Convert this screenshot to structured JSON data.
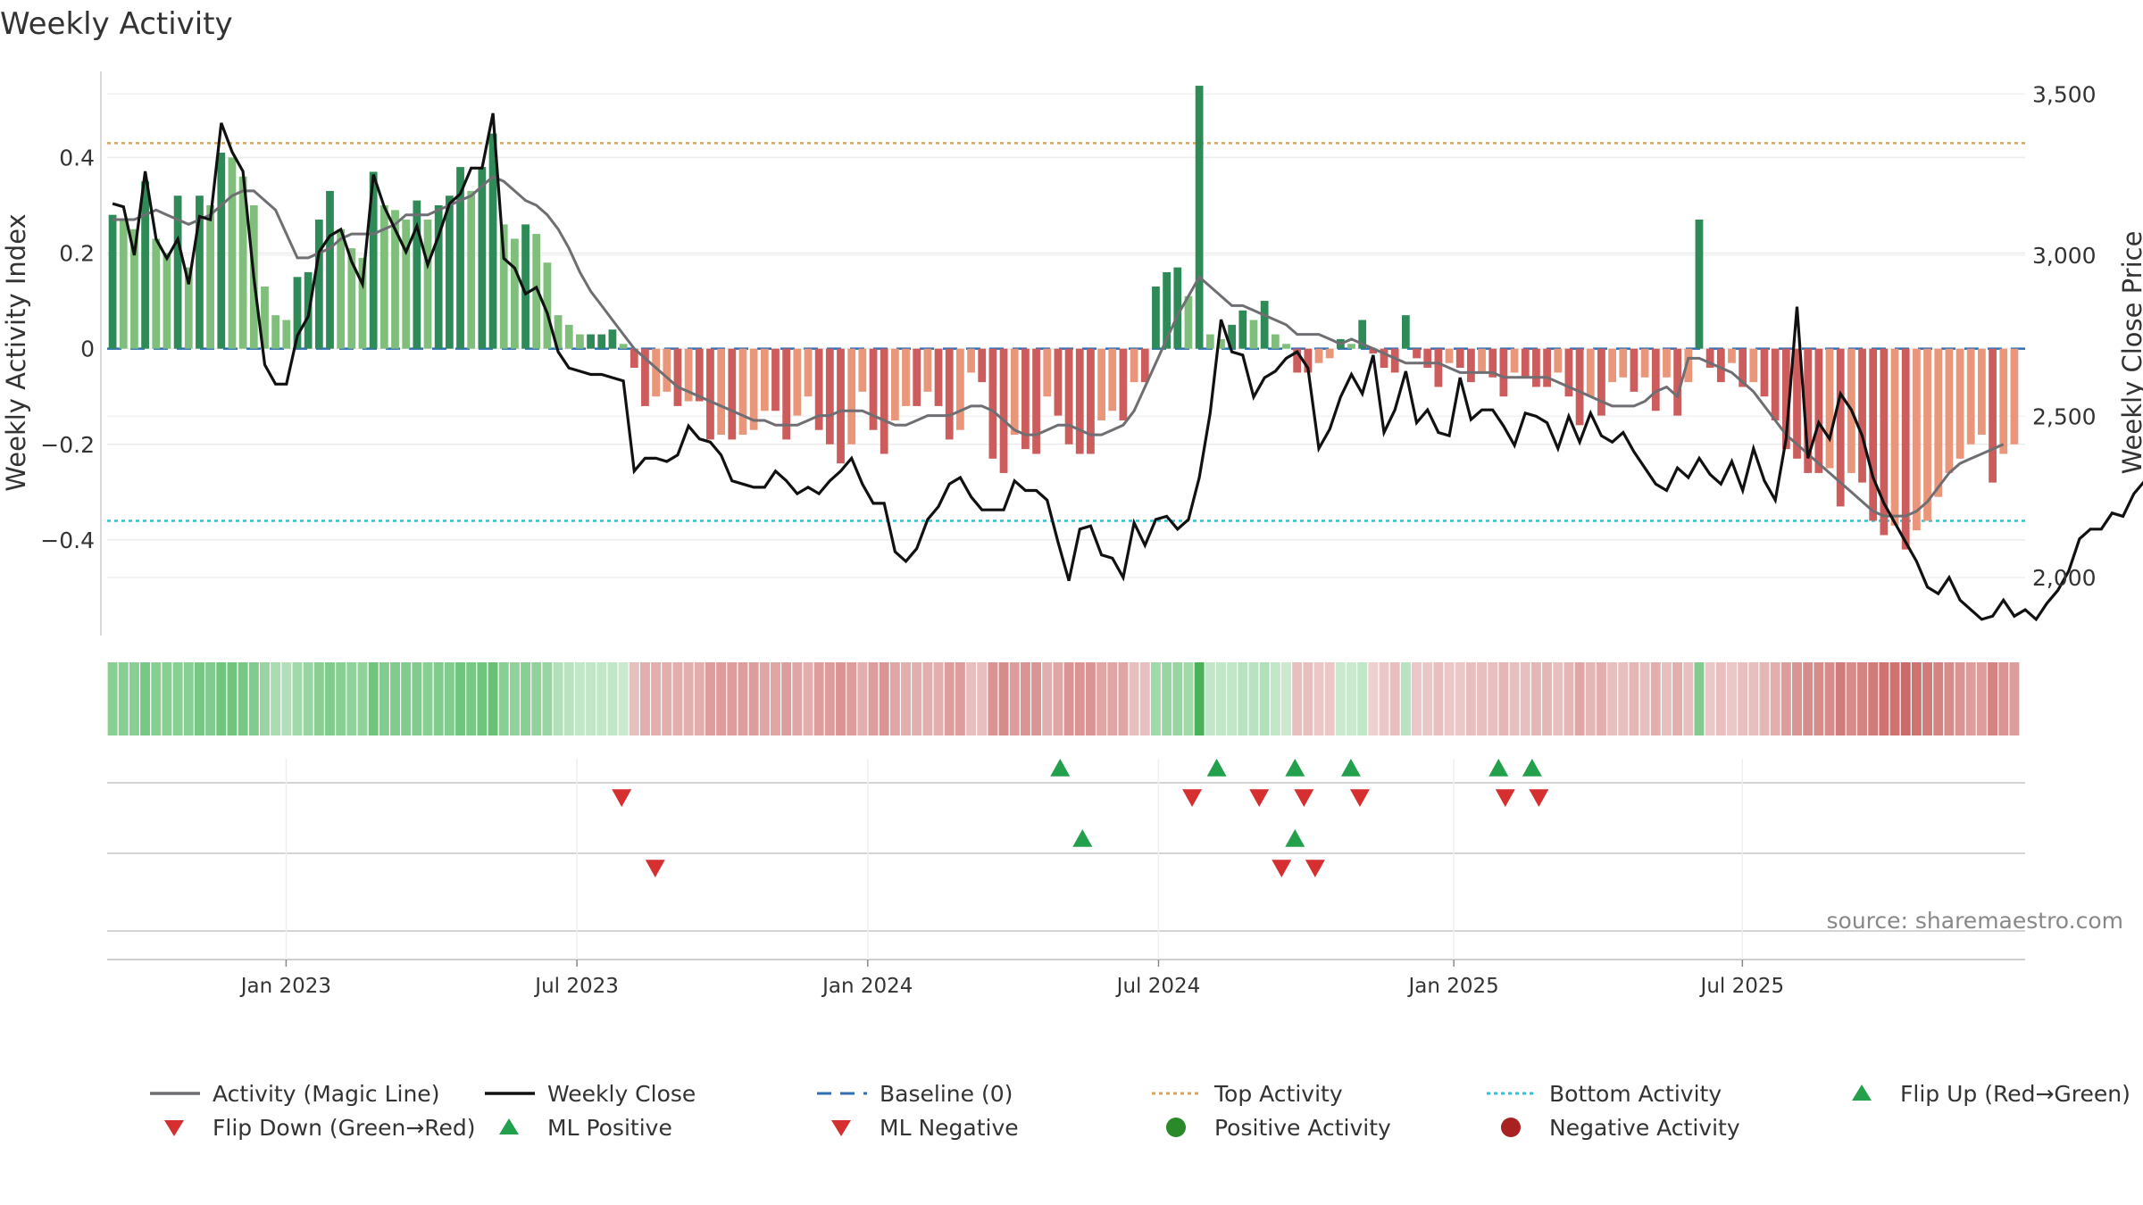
{
  "chart_data": {
    "type": "bar",
    "title": "Weekly Activity",
    "ylabel_left": "Weekly Activity Index",
    "ylabel_right": "Weekly Close Price",
    "xlabel": "",
    "ylim_left": [
      -0.6,
      0.58
    ],
    "ylim_right": [
      1820,
      3570
    ],
    "y_ticks_left": [
      {
        "value": 0.4,
        "label": "0.4"
      },
      {
        "value": 0.2,
        "label": "0.2"
      },
      {
        "value": 0,
        "label": "0"
      },
      {
        "value": -0.2,
        "label": "−0.2"
      },
      {
        "value": -0.4,
        "label": "−0.4"
      }
    ],
    "y_ticks_right": [
      {
        "value": 3500,
        "label": "3,500"
      },
      {
        "value": 3000,
        "label": "3,000"
      },
      {
        "value": 2500,
        "label": "2,500"
      },
      {
        "value": 2000,
        "label": "2,000"
      }
    ],
    "x_ticks": [
      {
        "week": 8,
        "label": "Jan 2023"
      },
      {
        "week": 21,
        "label": "Jul 2023"
      },
      {
        "week": 34,
        "label": "Jan 2024"
      },
      {
        "week": 47,
        "label": "Jul 2024"
      },
      {
        "week": 60.2,
        "label": "Jan 2025"
      },
      {
        "week": 73.1,
        "label": "Jul 2025"
      }
    ],
    "top_activity": 0.43,
    "bottom_activity": -0.36,
    "baseline": 0,
    "activity": [
      0.28,
      0.27,
      0.25,
      0.35,
      0.23,
      0.2,
      0.32,
      0.17,
      0.32,
      0.3,
      0.41,
      0.4,
      0.36,
      0.3,
      0.13,
      0.07,
      0.06,
      0.15,
      0.16,
      0.27,
      0.33,
      0.25,
      0.21,
      0.19,
      0.37,
      0.3,
      0.29,
      0.27,
      0.31,
      0.27,
      0.3,
      0.32,
      0.38,
      0.33,
      0.38,
      0.45,
      0.26,
      0.23,
      0.26,
      0.24,
      0.18,
      0.07,
      0.05,
      0.03,
      0.03,
      0.03,
      0.04,
      0.01,
      -0.04,
      -0.12,
      -0.1,
      -0.09,
      -0.12,
      -0.11,
      -0.11,
      -0.19,
      -0.18,
      -0.19,
      -0.18,
      -0.17,
      -0.13,
      -0.13,
      -0.19,
      -0.14,
      -0.1,
      -0.17,
      -0.2,
      -0.24,
      -0.2,
      -0.09,
      -0.17,
      -0.22,
      -0.15,
      -0.12,
      -0.12,
      -0.09,
      -0.12,
      -0.19,
      -0.17,
      -0.05,
      -0.07,
      -0.23,
      -0.26,
      -0.18,
      -0.21,
      -0.22,
      -0.1,
      -0.14,
      -0.2,
      -0.22,
      -0.22,
      -0.15,
      -0.13,
      -0.15,
      -0.07,
      -0.07,
      0.13,
      0.16,
      0.17,
      0.11,
      0.55,
      0.03,
      0.02,
      0.05,
      0.08,
      0.06,
      0.1,
      0.03,
      0.01,
      -0.05,
      -0.05,
      -0.03,
      -0.02,
      0.02,
      0.01,
      0.06,
      -0.01,
      -0.04,
      -0.05,
      0.07,
      -0.02,
      -0.04,
      -0.08,
      -0.03,
      -0.04,
      -0.07,
      -0.05,
      -0.06,
      -0.1,
      -0.05,
      -0.06,
      -0.08,
      -0.08,
      -0.05,
      -0.1,
      -0.16,
      -0.1,
      -0.14,
      -0.07,
      -0.06,
      -0.09,
      -0.06,
      -0.13,
      -0.06,
      -0.14,
      -0.07,
      0.27,
      -0.04,
      -0.07,
      -0.03,
      -0.08,
      -0.07,
      -0.1,
      -0.15,
      -0.21,
      -0.23,
      -0.26,
      -0.26,
      -0.25,
      -0.33,
      -0.26,
      -0.28,
      -0.36,
      -0.39,
      -0.37,
      -0.42,
      -0.38,
      -0.36,
      -0.31,
      -0.26,
      -0.23,
      -0.2,
      -0.18,
      -0.28,
      -0.22,
      -0.2
    ],
    "magic_line": [
      0.27,
      0.27,
      0.27,
      0.28,
      0.29,
      0.28,
      0.27,
      0.26,
      0.27,
      0.28,
      0.3,
      0.32,
      0.33,
      0.33,
      0.31,
      0.29,
      0.24,
      0.19,
      0.19,
      0.2,
      0.21,
      0.23,
      0.24,
      0.24,
      0.24,
      0.25,
      0.26,
      0.28,
      0.28,
      0.28,
      0.29,
      0.3,
      0.31,
      0.32,
      0.34,
      0.36,
      0.35,
      0.33,
      0.31,
      0.3,
      0.28,
      0.25,
      0.21,
      0.16,
      0.12,
      0.09,
      0.06,
      0.03,
      0.0,
      -0.02,
      -0.04,
      -0.06,
      -0.08,
      -0.09,
      -0.1,
      -0.11,
      -0.12,
      -0.13,
      -0.14,
      -0.15,
      -0.15,
      -0.16,
      -0.16,
      -0.16,
      -0.15,
      -0.14,
      -0.14,
      -0.13,
      -0.13,
      -0.13,
      -0.14,
      -0.15,
      -0.16,
      -0.16,
      -0.15,
      -0.14,
      -0.14,
      -0.14,
      -0.13,
      -0.12,
      -0.12,
      -0.13,
      -0.15,
      -0.17,
      -0.18,
      -0.18,
      -0.17,
      -0.16,
      -0.16,
      -0.17,
      -0.18,
      -0.18,
      -0.17,
      -0.16,
      -0.13,
      -0.08,
      -0.03,
      0.02,
      0.07,
      0.11,
      0.15,
      0.13,
      0.11,
      0.09,
      0.09,
      0.08,
      0.07,
      0.06,
      0.05,
      0.03,
      0.03,
      0.03,
      0.02,
      0.01,
      0.02,
      0.01,
      0.0,
      -0.01,
      -0.02,
      -0.03,
      -0.03,
      -0.03,
      -0.03,
      -0.04,
      -0.05,
      -0.05,
      -0.05,
      -0.05,
      -0.06,
      -0.06,
      -0.06,
      -0.06,
      -0.06,
      -0.07,
      -0.08,
      -0.09,
      -0.1,
      -0.11,
      -0.12,
      -0.12,
      -0.12,
      -0.11,
      -0.09,
      -0.08,
      -0.1,
      -0.02,
      -0.02,
      -0.03,
      -0.04,
      -0.05,
      -0.07,
      -0.09,
      -0.12,
      -0.15,
      -0.18,
      -0.2,
      -0.22,
      -0.24,
      -0.26,
      -0.28,
      -0.3,
      -0.32,
      -0.34,
      -0.35,
      -0.35,
      -0.35,
      -0.34,
      -0.32,
      -0.29,
      -0.26,
      -0.24,
      -0.23,
      -0.22,
      -0.21,
      -0.2
    ],
    "weekly_close": [
      3160,
      3150,
      3000,
      3260,
      3050,
      2990,
      3050,
      2910,
      3120,
      3110,
      3410,
      3320,
      3260,
      2930,
      2660,
      2600,
      2600,
      2750,
      2810,
      3010,
      3060,
      3080,
      2980,
      2910,
      3250,
      3150,
      3080,
      3010,
      3090,
      2970,
      3060,
      3160,
      3190,
      3270,
      3270,
      3440,
      2990,
      2960,
      2880,
      2900,
      2820,
      2700,
      2650,
      2640,
      2630,
      2630,
      2620,
      2610,
      2330,
      2370,
      2370,
      2360,
      2380,
      2470,
      2430,
      2420,
      2380,
      2300,
      2290,
      2280,
      2280,
      2330,
      2300,
      2260,
      2280,
      2260,
      2300,
      2330,
      2370,
      2290,
      2230,
      2230,
      2080,
      2050,
      2090,
      2180,
      2220,
      2290,
      2310,
      2250,
      2210,
      2210,
      2210,
      2300,
      2270,
      2270,
      2240,
      2110,
      1990,
      2150,
      2160,
      2070,
      2060,
      2000,
      2170,
      2100,
      2180,
      2190,
      2150,
      2180,
      2310,
      2510,
      2800,
      2700,
      2690,
      2560,
      2620,
      2640,
      2680,
      2700,
      2650,
      2400,
      2460,
      2560,
      2630,
      2570,
      2690,
      2450,
      2520,
      2640,
      2480,
      2520,
      2450,
      2440,
      2620,
      2490,
      2520,
      2520,
      2470,
      2410,
      2510,
      2500,
      2480,
      2400,
      2500,
      2420,
      2510,
      2440,
      2420,
      2450,
      2390,
      2340,
      2290,
      2270,
      2340,
      2310,
      2370,
      2320,
      2290,
      2360,
      2270,
      2400,
      2300,
      2240,
      2430,
      2840,
      2370,
      2480,
      2430,
      2570,
      2520,
      2440,
      2310,
      2230,
      2170,
      2110,
      2050,
      1970,
      1950,
      2000,
      1930,
      1900,
      1870,
      1880,
      1930,
      1880,
      1900,
      1870,
      1920,
      1960,
      2020,
      2120,
      2150,
      2150,
      2200,
      2190,
      2260,
      2300,
      2350
    ],
    "heatstrip_intensity": [
      0.55,
      0.55,
      0.55,
      0.65,
      0.55,
      0.55,
      0.55,
      0.55,
      0.65,
      0.6,
      0.7,
      0.7,
      0.65,
      0.6,
      0.45,
      0.35,
      0.3,
      0.4,
      0.45,
      0.55,
      0.6,
      0.55,
      0.5,
      0.5,
      0.7,
      0.6,
      0.6,
      0.6,
      0.6,
      0.55,
      0.6,
      0.6,
      0.7,
      0.65,
      0.7,
      0.75,
      0.55,
      0.5,
      0.55,
      0.5,
      0.45,
      0.3,
      0.25,
      0.2,
      0.2,
      0.2,
      0.2,
      0.15,
      0.2,
      0.3,
      0.3,
      0.3,
      0.3,
      0.3,
      0.3,
      0.4,
      0.4,
      0.4,
      0.4,
      0.4,
      0.35,
      0.35,
      0.4,
      0.35,
      0.3,
      0.4,
      0.4,
      0.45,
      0.4,
      0.3,
      0.4,
      0.45,
      0.35,
      0.3,
      0.3,
      0.3,
      0.3,
      0.4,
      0.4,
      0.2,
      0.2,
      0.45,
      0.5,
      0.4,
      0.45,
      0.45,
      0.3,
      0.35,
      0.45,
      0.45,
      0.45,
      0.35,
      0.35,
      0.35,
      0.2,
      0.2,
      0.4,
      0.45,
      0.45,
      0.4,
      0.95,
      0.2,
      0.2,
      0.2,
      0.25,
      0.25,
      0.3,
      0.2,
      0.15,
      0.2,
      0.2,
      0.15,
      0.15,
      0.15,
      0.15,
      0.2,
      0.1,
      0.15,
      0.2,
      0.25,
      0.15,
      0.15,
      0.2,
      0.15,
      0.15,
      0.2,
      0.2,
      0.2,
      0.25,
      0.2,
      0.2,
      0.25,
      0.25,
      0.2,
      0.25,
      0.35,
      0.25,
      0.3,
      0.2,
      0.2,
      0.25,
      0.2,
      0.3,
      0.2,
      0.3,
      0.2,
      0.6,
      0.15,
      0.2,
      0.15,
      0.2,
      0.2,
      0.25,
      0.3,
      0.4,
      0.45,
      0.5,
      0.5,
      0.5,
      0.6,
      0.5,
      0.55,
      0.6,
      0.65,
      0.65,
      0.7,
      0.65,
      0.6,
      0.55,
      0.5,
      0.45,
      0.4,
      0.4,
      0.55,
      0.45,
      0.4
    ],
    "flip_up_weeks": [
      42.6,
      49.6,
      53.1,
      55.6,
      62.2,
      63.7
    ],
    "flip_down_weeks": [
      23.0,
      48.5,
      51.5,
      53.5,
      56.0,
      62.5,
      64.0
    ],
    "ml_positive_weeks": [
      43.6,
      53.1
    ],
    "ml_negative_weeks": [
      24.5,
      52.5,
      54.0
    ],
    "legend": [
      {
        "label": "Activity (Magic Line)",
        "kind": "line",
        "color": "#6e6e73"
      },
      {
        "label": "Weekly Close",
        "kind": "line",
        "color": "#111111"
      },
      {
        "label": "Baseline (0)",
        "kind": "dashed",
        "color": "#2e6fb5"
      },
      {
        "label": "Top Activity",
        "kind": "dotted",
        "color": "#d9a55a"
      },
      {
        "label": "Bottom Activity",
        "kind": "dotted",
        "color": "#2ec4d6"
      },
      {
        "label": "Flip Up (Red→Green)",
        "kind": "triangle-up",
        "color": "#22a04b"
      },
      {
        "label": "Flip Down (Green→Red)",
        "kind": "triangle-down",
        "color": "#d62f2f"
      },
      {
        "label": "ML Positive",
        "kind": "triangle-up",
        "color": "#22a04b"
      },
      {
        "label": "ML Negative",
        "kind": "triangle-down",
        "color": "#d62f2f"
      },
      {
        "label": "Positive Activity",
        "kind": "circle",
        "color": "#2a8a2a"
      },
      {
        "label": "Negative Activity",
        "kind": "circle",
        "color": "#a82222"
      }
    ],
    "colors": {
      "bar_strong_green": "#2e8b57",
      "bar_light_green": "#7fbf7b",
      "bar_strong_red": "#cd5c5c",
      "bar_light_red": "#e9967a",
      "magic_line": "#6e6e73",
      "close_line": "#111111",
      "baseline": "#2e6fb5",
      "top": "#d9a55a",
      "bottom": "#2ec4d6",
      "up": "#22a04b",
      "down": "#d62f2f"
    },
    "source": "source: sharemaestro.com"
  }
}
